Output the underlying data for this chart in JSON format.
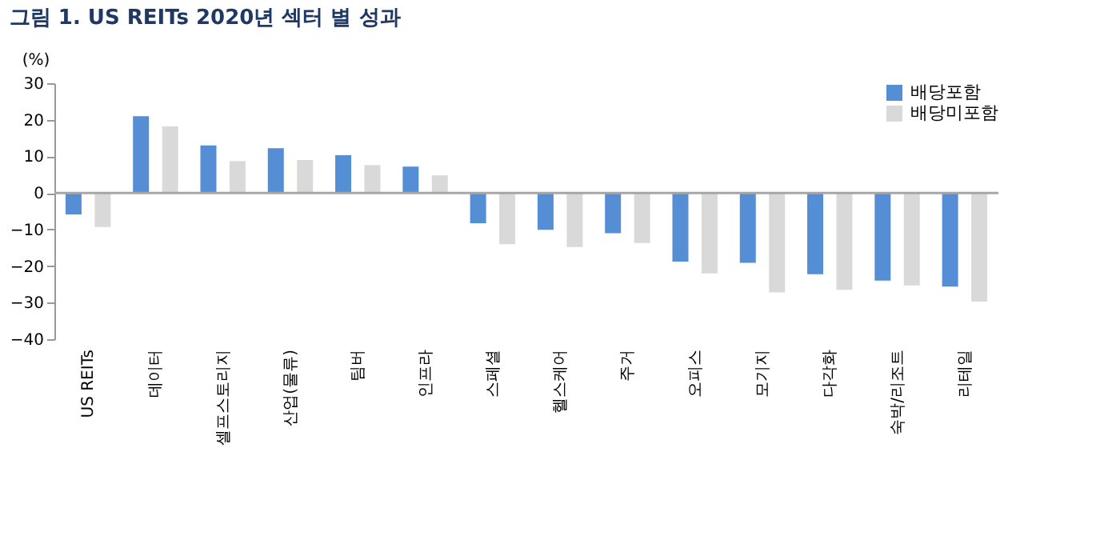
{
  "chart_data": {
    "type": "bar",
    "title": "그림 1.  US REITs 2020년 섹터 별 성과",
    "ylabel": "(%)",
    "categories": [
      "US REITs",
      "데이터",
      "셀프스토리지",
      "산업(물류)",
      "팀버",
      "인프라",
      "스페셜",
      "헬스케어",
      "주거",
      "오피스",
      "모기지",
      "다각화",
      "숙박/리조트",
      "리테일"
    ],
    "series": [
      {
        "name": "배당포함",
        "color": "#558ed5",
        "values": [
          -5.9,
          21,
          13,
          12.2,
          10.3,
          7.2,
          -8.3,
          -10.1,
          -11,
          -18.8,
          -19.1,
          -22.2,
          -24,
          -25.6
        ]
      },
      {
        "name": "배당미포함",
        "color": "#d9d9d9",
        "values": [
          -9.3,
          18.2,
          8.7,
          9,
          7.6,
          4.8,
          -14,
          -14.8,
          -13.7,
          -22,
          -27.2,
          -26.5,
          -25.3,
          -29.7
        ]
      }
    ],
    "ylim": [
      -40,
      30
    ],
    "yticks": [
      -40,
      -30,
      -20,
      -10,
      0,
      10,
      20,
      30
    ],
    "ref_lines": [
      {
        "axis": "y",
        "value": 0,
        "color": "#a6a6a6"
      }
    ],
    "grid": false,
    "legend": "top right"
  }
}
